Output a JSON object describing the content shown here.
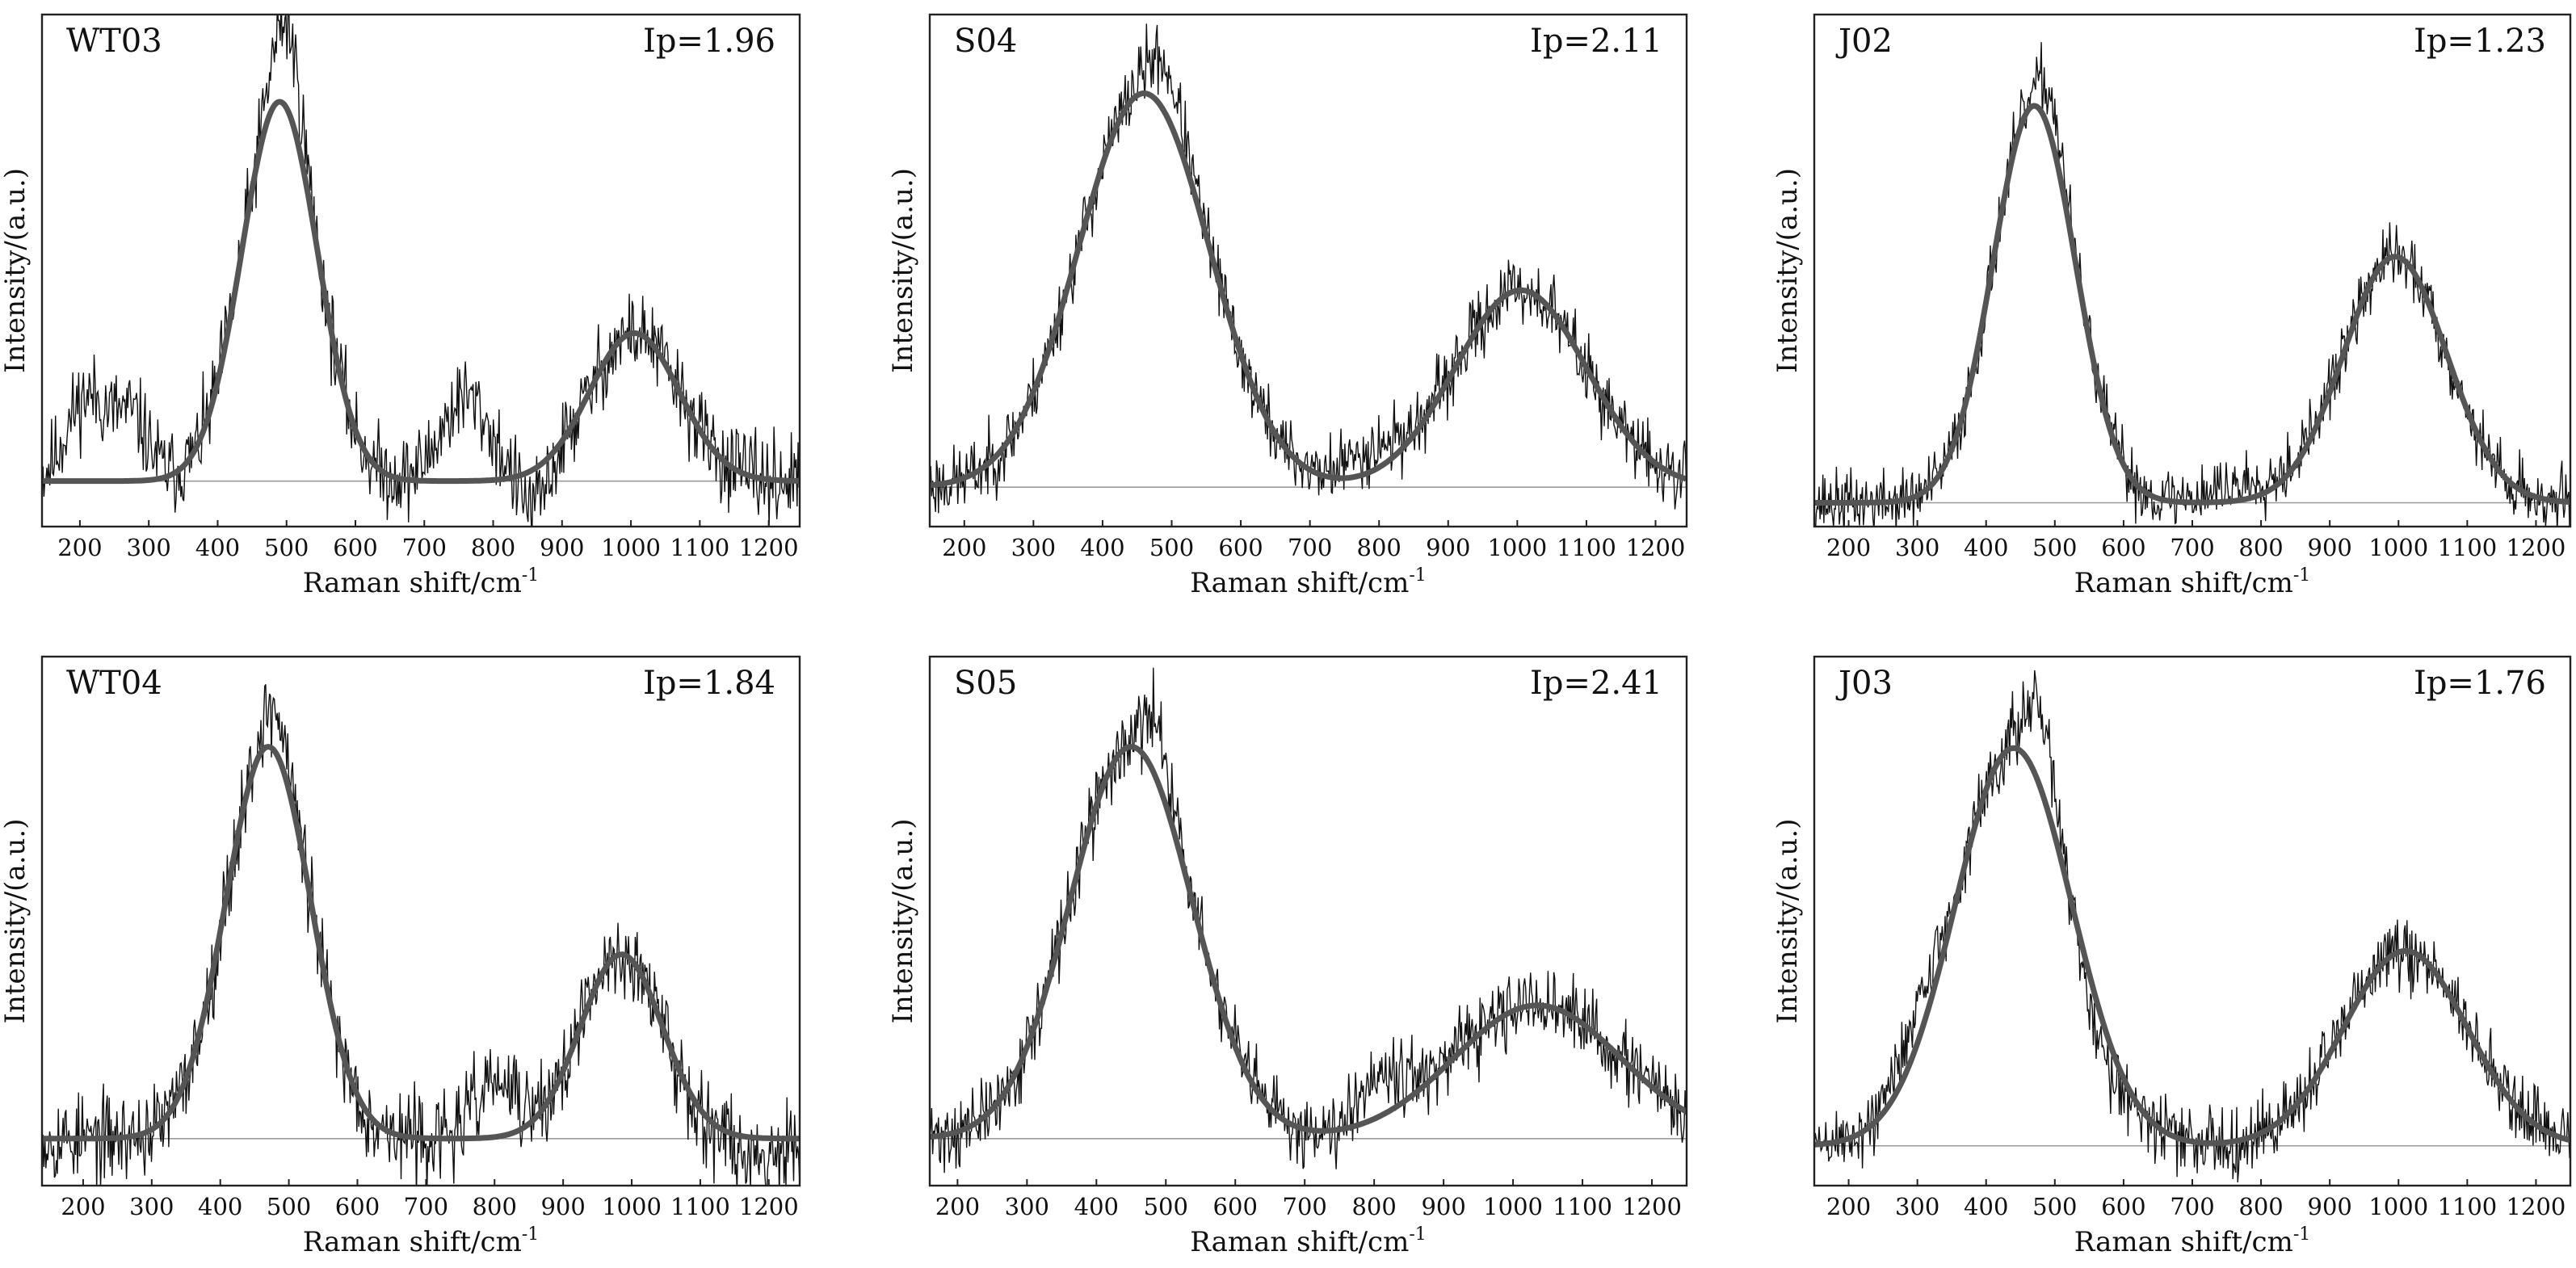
{
  "chart_data": [
    {
      "type": "line",
      "sample": "WT03",
      "ip_label": "Ip=1.96",
      "xlabel": "Raman shift/",
      "xlabel_unit": "cm",
      "xlabel_exp": "-1",
      "ylabel": "Intensity/(a.u.)",
      "xlim": [
        145,
        1245
      ],
      "xticks": [
        200,
        300,
        400,
        500,
        600,
        700,
        800,
        900,
        1000,
        1100,
        1200
      ],
      "ylim": [
        -0.12,
        1.23
      ],
      "peaks": [
        {
          "center": 490,
          "height": 1.0,
          "width": 55
        },
        {
          "center": 1005,
          "height": 0.39,
          "width": 65
        }
      ],
      "raw_features": [
        {
          "center": 210,
          "height": 0.22,
          "width": 30
        },
        {
          "center": 275,
          "height": 0.16,
          "width": 25
        },
        {
          "center": 500,
          "height": 0.22,
          "width": 20
        },
        {
          "center": 760,
          "height": 0.22,
          "width": 35
        },
        {
          "center": 860,
          "height": -0.1,
          "width": 20
        }
      ],
      "noise": 0.07,
      "seed": 11
    },
    {
      "type": "line",
      "sample": "S04",
      "ip_label": "Ip=2.11",
      "xlabel": "Raman shift/",
      "xlabel_unit": "cm",
      "xlabel_exp": "-1",
      "ylabel": "Intensity/(a.u.)",
      "xlim": [
        150,
        1245
      ],
      "xticks": [
        200,
        300,
        400,
        500,
        600,
        700,
        800,
        900,
        1000,
        1100,
        1200
      ],
      "ylim": [
        -0.1,
        1.2
      ],
      "peaks": [
        {
          "center": 460,
          "height": 1.0,
          "width": 95
        },
        {
          "center": 1005,
          "height": 0.5,
          "width": 95
        }
      ],
      "raw_features": [
        {
          "center": 490,
          "height": 0.12,
          "width": 25
        },
        {
          "center": 790,
          "height": 0.06,
          "width": 40
        }
      ],
      "noise": 0.055,
      "seed": 23
    },
    {
      "type": "line",
      "sample": "J02",
      "ip_label": "Ip=1.23",
      "xlabel": "Raman shift/",
      "xlabel_unit": "cm",
      "xlabel_exp": "-1",
      "ylabel": "Intensity/(a.u.)",
      "xlim": [
        150,
        1250
      ],
      "xticks": [
        200,
        300,
        400,
        500,
        600,
        700,
        800,
        900,
        1000,
        1100,
        1200
      ],
      "ylim": [
        -0.06,
        1.23
      ],
      "peaks": [
        {
          "center": 470,
          "height": 1.0,
          "width": 60
        },
        {
          "center": 995,
          "height": 0.62,
          "width": 75
        }
      ],
      "raw_features": [
        {
          "center": 495,
          "height": 0.1,
          "width": 18
        },
        {
          "center": 780,
          "height": 0.04,
          "width": 60
        }
      ],
      "noise": 0.05,
      "seed": 37
    },
    {
      "type": "line",
      "sample": "WT04",
      "ip_label": "Ip=1.84",
      "xlabel": "Raman shift/",
      "xlabel_unit": "cm",
      "xlabel_exp": "-1",
      "ylabel": "Intensity/(a.u.)",
      "xlim": [
        140,
        1245
      ],
      "xticks": [
        200,
        300,
        400,
        500,
        600,
        700,
        800,
        900,
        1000,
        1100,
        1200
      ],
      "ylim": [
        -0.12,
        1.23
      ],
      "peaks": [
        {
          "center": 470,
          "height": 1.0,
          "width": 62
        },
        {
          "center": 985,
          "height": 0.47,
          "width": 60
        }
      ],
      "raw_features": [
        {
          "center": 480,
          "height": 0.1,
          "width": 20
        },
        {
          "center": 800,
          "height": 0.14,
          "width": 30
        },
        {
          "center": 1180,
          "height": -0.05,
          "width": 25
        }
      ],
      "noise": 0.07,
      "seed": 53
    },
    {
      "type": "line",
      "sample": "S05",
      "ip_label": "Ip=2.41",
      "xlabel": "Raman shift/",
      "xlabel_unit": "cm",
      "xlabel_exp": "-1",
      "ylabel": "Intensity/(a.u.)",
      "xlim": [
        160,
        1250
      ],
      "xticks": [
        200,
        300,
        400,
        500,
        600,
        700,
        800,
        900,
        1000,
        1100,
        1200
      ],
      "ylim": [
        -0.12,
        1.23
      ],
      "peaks": [
        {
          "center": 450,
          "height": 1.0,
          "width": 88
        },
        {
          "center": 1035,
          "height": 0.34,
          "width": 120
        }
      ],
      "raw_features": [
        {
          "center": 490,
          "height": 0.14,
          "width": 20
        },
        {
          "center": 810,
          "height": 0.12,
          "width": 35
        }
      ],
      "noise": 0.06,
      "seed": 71
    },
    {
      "type": "line",
      "sample": "J03",
      "ip_label": "Ip=1.76",
      "xlabel": "Raman shift/",
      "xlabel_unit": "cm",
      "xlabel_exp": "-1",
      "ylabel": "Intensity/(a.u.)",
      "xlim": [
        150,
        1250
      ],
      "xticks": [
        200,
        300,
        400,
        500,
        600,
        700,
        800,
        900,
        1000,
        1100,
        1200
      ],
      "ylim": [
        -0.1,
        1.23
      ],
      "peaks": [
        {
          "center": 440,
          "height": 1.0,
          "width": 85
        },
        {
          "center": 1010,
          "height": 0.49,
          "width": 90
        }
      ],
      "raw_features": [
        {
          "center": 480,
          "height": 0.18,
          "width": 22
        },
        {
          "center": 300,
          "height": 0.1,
          "width": 30
        },
        {
          "center": 560,
          "height": -0.08,
          "width": 25
        }
      ],
      "noise": 0.055,
      "seed": 89
    }
  ]
}
